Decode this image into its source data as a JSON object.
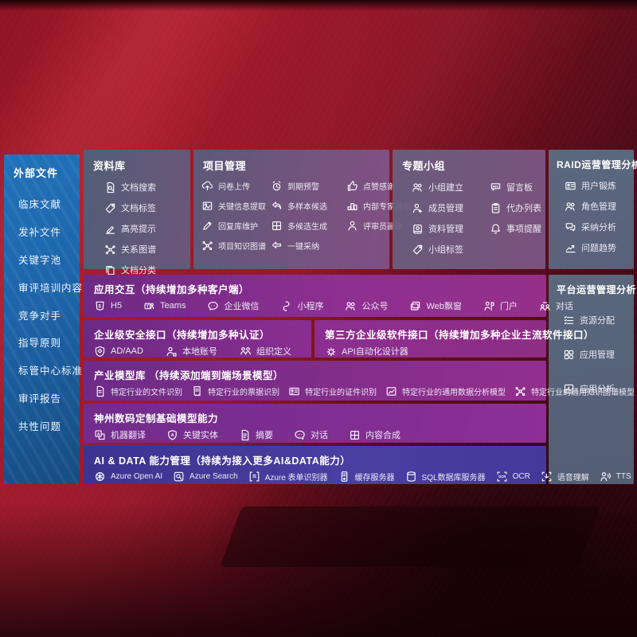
{
  "colors": {
    "background_red": "#a91d2e",
    "sidebar_blue": "#1d64a9",
    "panel_slate": "#5a6c82",
    "band_purple": "#8a2e90",
    "band_indigo": "#423a99",
    "text": "#ffffff"
  },
  "sidebar": {
    "title": "外部文件",
    "items": [
      {
        "label": "临床文献"
      },
      {
        "label": "发补文件"
      },
      {
        "label": "关键字池"
      },
      {
        "label": "审评培训内容"
      },
      {
        "label": "竞争对手"
      },
      {
        "label": "指导原则"
      },
      {
        "label": "标管中心标准"
      },
      {
        "label": "审评报告"
      },
      {
        "label": "共性问题"
      }
    ]
  },
  "panels": {
    "repo": {
      "title": "资料库",
      "items": [
        {
          "icon": "doc-search",
          "label": "文档搜索"
        },
        {
          "icon": "tag",
          "label": "文档标签"
        },
        {
          "icon": "highlight",
          "label": "高亮提示"
        },
        {
          "icon": "graph",
          "label": "关系图谱"
        },
        {
          "icon": "copy",
          "label": "文档分类"
        }
      ]
    },
    "project": {
      "title": "项目管理",
      "items": [
        {
          "icon": "cloud-up",
          "label": "问卷上传"
        },
        {
          "icon": "alarm",
          "label": "到期预警"
        },
        {
          "icon": "thumb",
          "label": "点赞感谢"
        },
        {
          "icon": "image-doc",
          "label": "关键信息提取"
        },
        {
          "icon": "reply",
          "label": "多样本候选"
        },
        {
          "icon": "podium",
          "label": "内部专家排名"
        },
        {
          "icon": "pencil",
          "label": "回复库维护"
        },
        {
          "icon": "puzzle",
          "label": "多候选生成"
        },
        {
          "icon": "person",
          "label": "评审员画像"
        },
        {
          "icon": "graph",
          "label": "项目知识图谱"
        },
        {
          "icon": "adopt",
          "label": "一键采纳"
        }
      ]
    },
    "group": {
      "title": "专题小组",
      "left_items": [
        {
          "icon": "people",
          "label": "小组建立"
        },
        {
          "icon": "person-add",
          "label": "成员管理"
        },
        {
          "icon": "album",
          "label": "资料管理"
        },
        {
          "icon": "tag",
          "label": "小组标签"
        }
      ],
      "right_items": [
        {
          "icon": "bbs",
          "label": "留言板"
        },
        {
          "icon": "clipboard",
          "label": "代办列表"
        },
        {
          "icon": "bell",
          "label": "事项提醒"
        }
      ]
    },
    "raid": {
      "title": "RAID运营管理分析",
      "items": [
        {
          "icon": "id-card",
          "label": "用户锻炼"
        },
        {
          "icon": "people",
          "label": "角色管理"
        },
        {
          "icon": "chat-qa",
          "label": "采纳分析"
        },
        {
          "icon": "trend",
          "label": "问题趋势"
        }
      ]
    },
    "platform": {
      "title": "平台运营管理分析",
      "items": [
        {
          "icon": "list",
          "label": "资源分配"
        },
        {
          "icon": "grid",
          "label": "应用管理"
        },
        {
          "icon": "app-chart",
          "label": "应用分析"
        }
      ]
    }
  },
  "bands": {
    "interact": {
      "title": "应用交互（持续增加多种客户端）",
      "items": [
        {
          "icon": "h5",
          "label": "H5"
        },
        {
          "icon": "teams",
          "label": "Teams"
        },
        {
          "icon": "wechat",
          "label": "企业微信"
        },
        {
          "icon": "miniprogram",
          "label": "小程序"
        },
        {
          "icon": "official",
          "label": "公众号"
        },
        {
          "icon": "web-popup",
          "label": "Web飘窗"
        },
        {
          "icon": "portal",
          "label": "门户"
        },
        {
          "icon": "dialog",
          "label": "对话"
        }
      ]
    },
    "security": {
      "title": "企业级安全接口（持续增加多种认证）",
      "items": [
        {
          "icon": "shield",
          "label": "AD/AAD"
        },
        {
          "icon": "person-badge",
          "label": "本地账号"
        },
        {
          "icon": "org",
          "label": "组织定义"
        }
      ]
    },
    "third_party": {
      "title": "第三方企业级软件接口（持续增加多种企业主流软件接口）",
      "items": [
        {
          "icon": "api-gear",
          "label": "API自动化设计器"
        }
      ]
    },
    "industry": {
      "title": "产业模型库 （持续添加端到端场景模型）",
      "items": [
        {
          "icon": "doc",
          "label": "特定行业的文件识别"
        },
        {
          "icon": "receipt",
          "label": "特定行业的票据识别"
        },
        {
          "icon": "id-card",
          "label": "特定行业的证件识别"
        },
        {
          "icon": "data-chart",
          "label": "特定行业的通用数据分析模型"
        },
        {
          "icon": "graph",
          "label": "特定行业的通用知识图谱模型"
        }
      ]
    },
    "base_model": {
      "title": "神州数码定制基础模型能力",
      "items": [
        {
          "icon": "translate",
          "label": "机器翻译"
        },
        {
          "icon": "entity",
          "label": "关键实体"
        },
        {
          "icon": "summary",
          "label": "摘要"
        },
        {
          "icon": "chat",
          "label": "对话"
        },
        {
          "icon": "puzzle",
          "label": "内容合成"
        }
      ]
    },
    "ai_data": {
      "title": "AI & DATA 能力管理（持续为接入更多AI&DATA能力）",
      "items": [
        {
          "icon": "openai",
          "label": "Azure Open AI"
        },
        {
          "icon": "azure-search",
          "label": "Azure Search"
        },
        {
          "icon": "form",
          "label": "Azure 表单识别器"
        },
        {
          "icon": "cache",
          "label": "缓存服务器"
        },
        {
          "icon": "sql",
          "label": "SQL数据库服务器"
        },
        {
          "icon": "ocr",
          "label": "OCR"
        },
        {
          "icon": "speech",
          "label": "语音理解"
        },
        {
          "icon": "tts",
          "label": "TTS"
        }
      ]
    }
  }
}
